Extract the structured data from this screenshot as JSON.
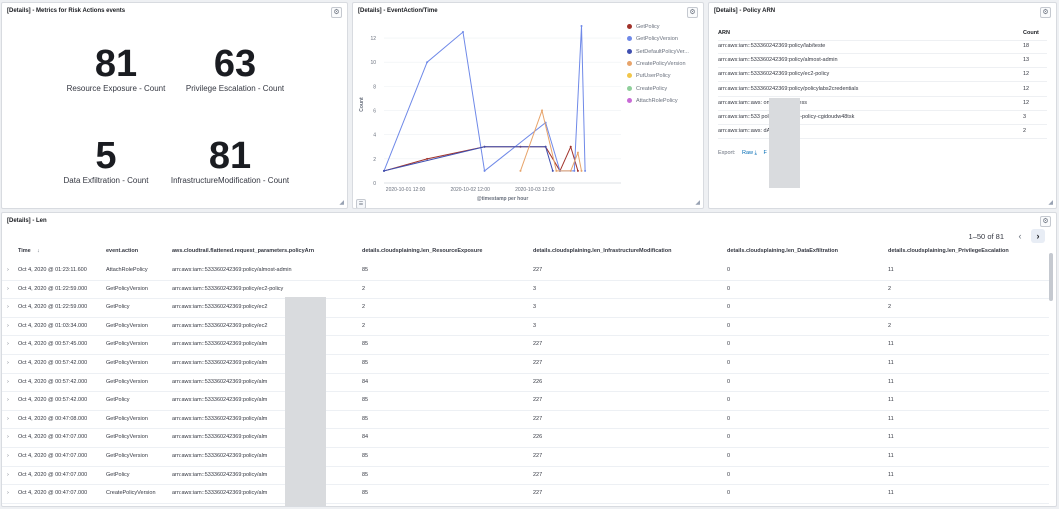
{
  "metrics_panel": {
    "title": "[Details] - Metrics for Risk Actions events",
    "metrics": [
      {
        "value": "81",
        "label": "Resource Exposure - Count"
      },
      {
        "value": "63",
        "label": "Privilege Escalation - Count"
      },
      {
        "value": "5",
        "label": "Data Exfiltration - Count"
      },
      {
        "value": "81",
        "label": "InfrastructureModification - Count"
      }
    ]
  },
  "chart_panel": {
    "title": "[Details] - EventAction/Time"
  },
  "chart_data": {
    "type": "line",
    "xlabel": "@timestamp per hour",
    "ylabel": "Count",
    "x_tick_labels": [
      "2020-10-01 12:00",
      "2020-10-02 12:00",
      "2020-10-03 12:00"
    ],
    "y_ticks": [
      0,
      2,
      4,
      6,
      8,
      10,
      12
    ],
    "ylim": [
      0,
      13
    ],
    "legend_position": "right",
    "series": [
      {
        "name": "GetPolicy",
        "color": "#a0322a",
        "values": [
          [
            0,
            1
          ],
          [
            12,
            2
          ],
          [
            28,
            3
          ],
          [
            38,
            3
          ],
          [
            45,
            3
          ],
          [
            49,
            1
          ],
          [
            52,
            3
          ],
          [
            54,
            1
          ]
        ]
      },
      {
        "name": "GetPolicyVersion",
        "color": "#6f89e8",
        "values": [
          [
            0,
            1
          ],
          [
            12,
            10
          ],
          [
            22,
            12.5
          ],
          [
            28,
            1
          ],
          [
            45,
            5
          ],
          [
            49,
            1
          ],
          [
            53,
            1
          ],
          [
            55,
            13
          ],
          [
            56,
            1
          ]
        ]
      },
      {
        "name": "SetDefaultPolicyVer...",
        "color": "#3f4fb0",
        "values": [
          [
            0,
            1
          ],
          [
            28,
            3
          ],
          [
            45,
            3
          ],
          [
            47,
            1
          ]
        ]
      },
      {
        "name": "CreatePolicyVersion",
        "color": "#e7a46b",
        "values": [
          [
            38,
            1
          ],
          [
            44,
            6
          ],
          [
            48,
            1
          ],
          [
            52,
            1
          ],
          [
            54,
            2.5
          ],
          [
            55,
            1
          ]
        ]
      },
      {
        "name": "PutUserPolicy",
        "color": "#f1c64a",
        "values": []
      },
      {
        "name": "CreatePolicy",
        "color": "#8fcf9b",
        "values": []
      },
      {
        "name": "AttachRolePolicy",
        "color": "#c86ad6",
        "values": []
      }
    ]
  },
  "arn_panel": {
    "title": "[Details] - Policy ARN",
    "col_arn": "ARN",
    "col_count": "Count",
    "rows": [
      {
        "arn": "arn:aws:iam::533360242369:policy/lab/teste",
        "count": "18"
      },
      {
        "arn": "arn:aws:iam::533360242369:policy/almost-admin",
        "count": "13"
      },
      {
        "arn": "arn:aws:iam::533360242369:policy/ec2-policy",
        "count": "12"
      },
      {
        "arn": "arn:aws:iam::533360242369:policy/policylabs2credentials",
        "count": "12"
      },
      {
        "arn": "arn:aws:iam::aws:               onEC2FullAccess",
        "count": "12"
      },
      {
        "arn": "arn:aws:iam::533               policy/cg-raynor-policy-cgidoudw48tsk",
        "count": "3"
      },
      {
        "arn": "arn:aws:iam::aws:               dAccess",
        "count": "2"
      }
    ],
    "export_label": "Export:",
    "raw_label": "Raw",
    "formatted_label": "F"
  },
  "len_panel": {
    "title": "[Details] - Len",
    "pagination": "1–50 of 81",
    "columns": [
      "Time",
      "event.action",
      "aws.cloudtrail.flattened.request_parameters.policyArn",
      "details.cloudsplaining.len_ResourceExposure",
      "details.cloudsplaining.len_InfrastructureModification",
      "details.cloudsplaining.len_DataExfiltration",
      "details.cloudsplaining.len_PrivilegeEscalation"
    ],
    "rows": [
      {
        "time": "Oct 4, 2020 @ 01:23:11.600",
        "action": "AttachRolePolicy",
        "arn": "arn:aws:iam::533360242369:policy/almost-admin",
        "re": "85",
        "im": "227",
        "de": "0",
        "pe": "11"
      },
      {
        "time": "Oct 4, 2020 @ 01:22:59.000",
        "action": "GetPolicyVersion",
        "arn": "arn:aws:iam::533360242369:policy/ec2-policy",
        "re": "2",
        "im": "3",
        "de": "0",
        "pe": "2"
      },
      {
        "time": "Oct 4, 2020 @ 01:22:59.000",
        "action": "GetPolicy",
        "arn": "arn:aws:iam::533360242369:policy/ec2",
        "re": "2",
        "im": "3",
        "de": "0",
        "pe": "2"
      },
      {
        "time": "Oct 4, 2020 @ 01:03:34.000",
        "action": "GetPolicyVersion",
        "arn": "arn:aws:iam::533360242369:policy/ec2",
        "re": "2",
        "im": "3",
        "de": "0",
        "pe": "2"
      },
      {
        "time": "Oct 4, 2020 @ 00:57:45.000",
        "action": "GetPolicyVersion",
        "arn": "arn:aws:iam::533360242369:policy/alm",
        "re": "85",
        "im": "227",
        "de": "0",
        "pe": "11"
      },
      {
        "time": "Oct 4, 2020 @ 00:57:42.000",
        "action": "GetPolicyVersion",
        "arn": "arn:aws:iam::533360242369:policy/alm",
        "re": "85",
        "im": "227",
        "de": "0",
        "pe": "11"
      },
      {
        "time": "Oct 4, 2020 @ 00:57:42.000",
        "action": "GetPolicyVersion",
        "arn": "arn:aws:iam::533360242369:policy/alm",
        "re": "84",
        "im": "226",
        "de": "0",
        "pe": "11"
      },
      {
        "time": "Oct 4, 2020 @ 00:57:42.000",
        "action": "GetPolicy",
        "arn": "arn:aws:iam::533360242369:policy/alm",
        "re": "85",
        "im": "227",
        "de": "0",
        "pe": "11"
      },
      {
        "time": "Oct 4, 2020 @ 00:47:08.000",
        "action": "GetPolicyVersion",
        "arn": "arn:aws:iam::533360242369:policy/alm",
        "re": "85",
        "im": "227",
        "de": "0",
        "pe": "11"
      },
      {
        "time": "Oct 4, 2020 @ 00:47:07.000",
        "action": "GetPolicyVersion",
        "arn": "arn:aws:iam::533360242369:policy/alm",
        "re": "84",
        "im": "226",
        "de": "0",
        "pe": "11"
      },
      {
        "time": "Oct 4, 2020 @ 00:47:07.000",
        "action": "GetPolicyVersion",
        "arn": "arn:aws:iam::533360242369:policy/alm",
        "re": "85",
        "im": "227",
        "de": "0",
        "pe": "11"
      },
      {
        "time": "Oct 4, 2020 @ 00:47:07.000",
        "action": "GetPolicy",
        "arn": "arn:aws:iam::533360242369:policy/alm",
        "re": "85",
        "im": "227",
        "de": "0",
        "pe": "11"
      },
      {
        "time": "Oct 4, 2020 @ 00:47:07.000",
        "action": "CreatePolicyVersion",
        "arn": "arn:aws:iam::533360242369:policy/alm",
        "re": "85",
        "im": "227",
        "de": "0",
        "pe": "11"
      }
    ]
  }
}
